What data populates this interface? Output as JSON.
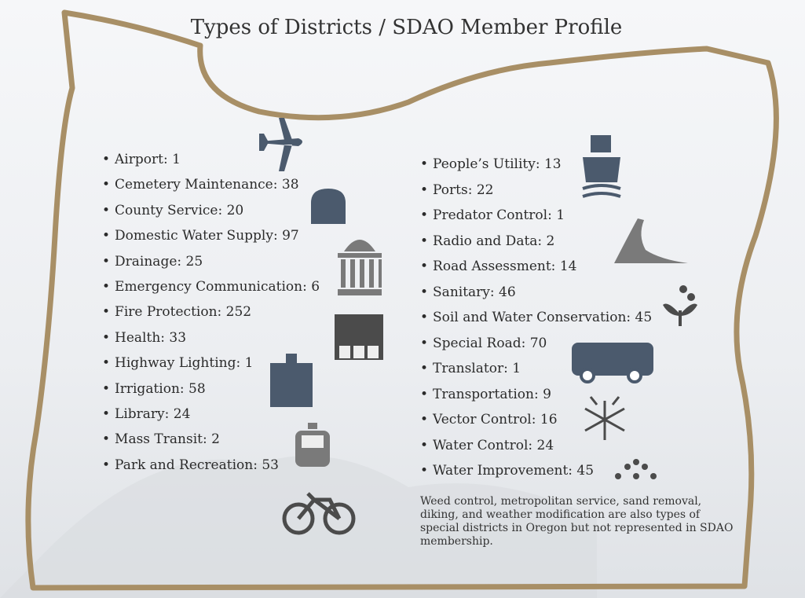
{
  "title": "Types of Districts / SDAO Member Profile",
  "left_list": [
    "Airport: 1",
    "Cemetery Maintenance: 38",
    "County Service: 20",
    "Domestic Water Supply: 97",
    "Drainage: 25",
    "Emergency Communication: 6",
    "Fire Protection: 252",
    "Health: 33",
    "Highway Lighting: 1",
    "Irrigation: 58",
    "Library: 24",
    "Mass Transit: 2",
    "Park and Recreation: 53"
  ],
  "right_list": [
    "People’s Utility: 13",
    "Ports: 22",
    "Predator Control: 1",
    "Radio and Data: 2",
    "Road Assessment: 14",
    "Sanitary: 46",
    "Soil and Water Conservation: 45",
    "Special Road: 70",
    "Translator: 1",
    "Transportation: 9",
    "Vector Control: 16",
    "Water Control: 24",
    "Water Improvement: 45"
  ],
  "note": "Weed control, metropolitan service, sand removal, diking, and weather modification are also types of special districts in Oregon but not represented in SDAO membership."
}
